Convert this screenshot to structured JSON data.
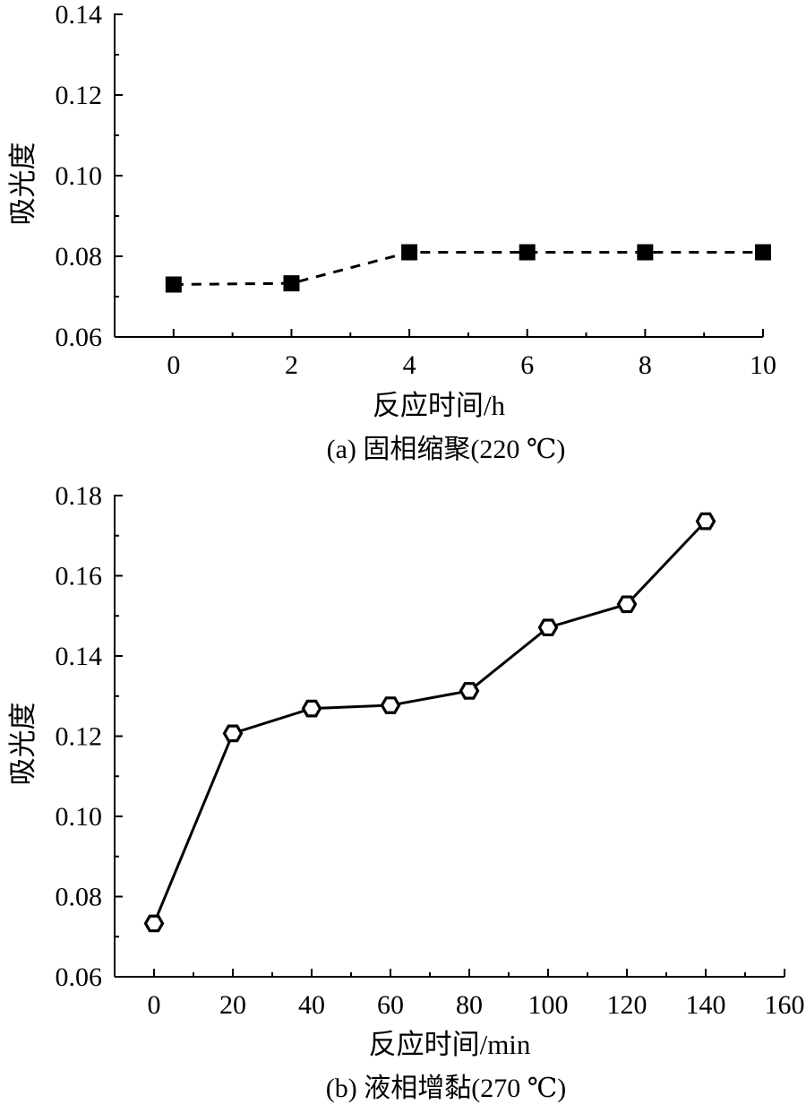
{
  "chart_data": [
    {
      "type": "line",
      "caption": "(a) 固相缩聚(220 ℃)",
      "title": "",
      "xlabel": "反应时间/h",
      "ylabel": "吸光度",
      "xlim": [
        -1,
        10
      ],
      "ylim": [
        0.06,
        0.14
      ],
      "x_ticks": [
        0,
        2,
        4,
        6,
        8,
        10
      ],
      "x_tick_labels": [
        "0",
        "2",
        "4",
        "6",
        "8",
        "10"
      ],
      "y_ticks": [
        0.06,
        0.08,
        0.1,
        0.12,
        0.14
      ],
      "y_tick_labels": [
        "0.06",
        "0.08",
        "0.10",
        "0.12",
        "0.14"
      ],
      "grid": false,
      "series": [
        {
          "marker": "filled-square",
          "line_style": "dashed",
          "color": "#000000",
          "x": [
            0,
            2,
            4,
            6,
            8,
            10
          ],
          "y": [
            0.073,
            0.0733,
            0.081,
            0.081,
            0.081,
            0.081
          ]
        }
      ]
    },
    {
      "type": "line",
      "caption": "(b) 液相增黏(270 ℃)",
      "title": "",
      "xlabel": "反应时间/min",
      "ylabel": "吸光度",
      "xlim": [
        -10,
        160
      ],
      "ylim": [
        0.06,
        0.18
      ],
      "x_ticks": [
        0,
        20,
        40,
        60,
        80,
        100,
        120,
        140,
        160
      ],
      "x_tick_labels": [
        "0",
        "20",
        "40",
        "60",
        "80",
        "100",
        "120",
        "140",
        "160"
      ],
      "y_ticks": [
        0.06,
        0.08,
        0.1,
        0.12,
        0.14,
        0.16,
        0.18
      ],
      "y_tick_labels": [
        "0.06",
        "0.08",
        "0.10",
        "0.12",
        "0.14",
        "0.16",
        "0.18"
      ],
      "grid": false,
      "series": [
        {
          "marker": "open-hexagon",
          "line_style": "solid",
          "color": "#000000",
          "x": [
            0,
            20,
            40,
            60,
            80,
            100,
            120,
            140
          ],
          "y": [
            0.0733,
            0.1207,
            0.1269,
            0.1277,
            0.1313,
            0.1471,
            0.1529,
            0.1736
          ]
        }
      ]
    }
  ]
}
